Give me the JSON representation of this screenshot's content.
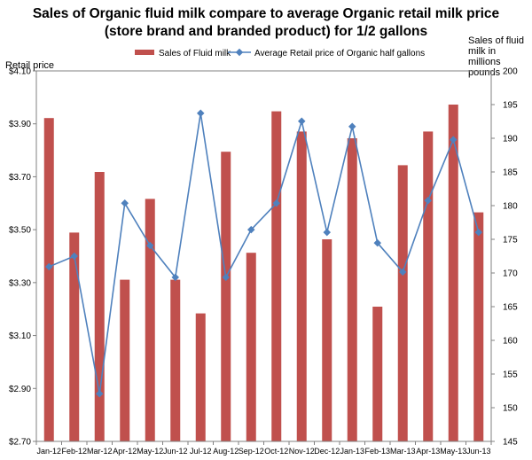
{
  "chart_data": {
    "type": "bar+line",
    "title_line1": "Sales of Organic fluid milk compare to average Organic retail milk price",
    "title_line2": "(store brand and branded product) for 1/2 gallons",
    "ylabel_left": "Retail price",
    "ylabel_right": [
      "Sales of fluid",
      "milk in millions",
      "pounds"
    ],
    "categories": [
      "Jan-12",
      "Feb-12",
      "Mar-12",
      "Apr-12",
      "May-12",
      "Jun-12",
      "Jul-12",
      "Aug-12",
      "Sep-12",
      "Oct-12",
      "Nov-12",
      "Dec-12",
      "Jan-13",
      "Feb-13",
      "Mar-13",
      "Apr-13",
      "May-13",
      "Jun-13"
    ],
    "left_axis": {
      "min": 2.7,
      "max": 4.1,
      "ticks": [
        "$2.70",
        "$2.90",
        "$3.10",
        "$3.30",
        "$3.50",
        "$3.70",
        "$3.90",
        "$4.10"
      ]
    },
    "right_axis": {
      "min": 145,
      "max": 200,
      "ticks": [
        "145",
        "150",
        "155",
        "160",
        "165",
        "170",
        "175",
        "180",
        "185",
        "190",
        "195",
        "200"
      ]
    },
    "series": [
      {
        "name": "Sales of Fluid milk",
        "type": "bar",
        "axis": "right",
        "color": "#c0504d",
        "values": [
          193,
          176,
          185,
          169,
          181,
          169,
          164,
          188,
          173,
          194,
          191,
          175,
          190,
          165,
          186,
          191,
          195,
          179
        ]
      },
      {
        "name": "Average Retail price of Organic half gallons",
        "type": "line",
        "axis": "left",
        "color": "#4f81bd",
        "values": [
          3.36,
          3.4,
          2.88,
          3.6,
          3.44,
          3.32,
          3.94,
          3.32,
          3.5,
          3.6,
          3.91,
          3.49,
          3.89,
          3.45,
          3.34,
          3.61,
          3.84,
          3.49
        ]
      }
    ],
    "grid": false,
    "legend": "top"
  }
}
